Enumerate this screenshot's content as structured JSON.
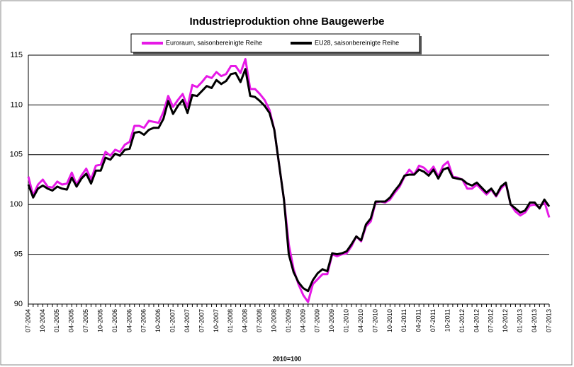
{
  "chart_data": {
    "type": "line",
    "title": "Industrieproduktion ohne Baugewerbe",
    "x_label": "2010=100",
    "categories": [
      "07-2004",
      null,
      null,
      "10-2004",
      null,
      null,
      "01-2005",
      null,
      null,
      "04-2005",
      null,
      null,
      "07-2005",
      null,
      null,
      "10-2005",
      null,
      null,
      "01-2006",
      null,
      null,
      "04-2006",
      null,
      null,
      "07-2006",
      null,
      null,
      "10-2006",
      null,
      null,
      "01-2007",
      null,
      null,
      "04-2007",
      null,
      null,
      "07-2007",
      null,
      null,
      "10-2007",
      null,
      null,
      "01-2008",
      null,
      null,
      "04-2008",
      null,
      null,
      "07-2008",
      null,
      null,
      "10-2008",
      null,
      null,
      "01-2009",
      null,
      null,
      "04-2009",
      null,
      null,
      "07-2009",
      null,
      null,
      "10-2009",
      null,
      null,
      "01-2010",
      null,
      null,
      "04-2010",
      null,
      null,
      "07-2010",
      null,
      null,
      "10-2010",
      null,
      null,
      "01-2011",
      null,
      null,
      "04-2011",
      null,
      null,
      "07-2011",
      null,
      null,
      "10-2011",
      null,
      null,
      "01-2012",
      null,
      null,
      "04-2012",
      null,
      null,
      "07-2012",
      null,
      null,
      "10-2012",
      null,
      null,
      "01-2013",
      null,
      null,
      "04-2013",
      null,
      null,
      "07-2013"
    ],
    "series": [
      {
        "name": "Euroraum, saisonbereinigte Reihe",
        "color": "#e619e6",
        "values": [
          102.8,
          100.9,
          102.0,
          102.5,
          101.8,
          101.7,
          102.3,
          102.0,
          102.1,
          103.2,
          102.0,
          102.9,
          103.6,
          102.5,
          103.9,
          104.0,
          105.3,
          104.9,
          105.5,
          105.3,
          106.0,
          106.3,
          107.9,
          107.9,
          107.7,
          108.4,
          108.3,
          108.2,
          109.3,
          110.9,
          109.8,
          110.5,
          111.1,
          109.8,
          112.0,
          111.8,
          112.3,
          112.9,
          112.7,
          113.3,
          112.9,
          113.1,
          113.9,
          113.9,
          113.2,
          114.6,
          111.6,
          111.6,
          111.1,
          110.5,
          109.5,
          107.5,
          104.0,
          100.5,
          96.0,
          93.5,
          92.0,
          90.9,
          90.2,
          92.0,
          92.5,
          93.0,
          93.0,
          95.0,
          94.8,
          95.0,
          95.1,
          95.8,
          96.8,
          96.3,
          97.8,
          98.3,
          100.2,
          100.3,
          100.2,
          100.5,
          101.2,
          101.8,
          102.8,
          103.5,
          103.0,
          103.9,
          103.7,
          103.2,
          103.8,
          102.8,
          103.9,
          104.3,
          102.8,
          102.7,
          102.5,
          101.6,
          101.6,
          102.0,
          101.5,
          101.0,
          101.5,
          100.8,
          101.6,
          102.1,
          100.0,
          99.3,
          98.9,
          99.2,
          99.9,
          100.0,
          99.7,
          100.3,
          98.7
        ]
      },
      {
        "name": "EU28, saisonbereinigte Reihe",
        "color": "#000000",
        "values": [
          102.0,
          100.7,
          101.6,
          101.9,
          101.6,
          101.4,
          101.8,
          101.6,
          101.5,
          102.7,
          101.8,
          102.6,
          103.1,
          102.1,
          103.4,
          103.4,
          104.7,
          104.5,
          105.1,
          104.9,
          105.5,
          105.6,
          107.2,
          107.3,
          107.0,
          107.5,
          107.7,
          107.7,
          108.6,
          110.4,
          109.1,
          109.9,
          110.5,
          109.2,
          111.0,
          110.9,
          111.4,
          111.9,
          111.7,
          112.5,
          112.1,
          112.4,
          113.1,
          113.2,
          112.3,
          113.6,
          110.9,
          110.8,
          110.4,
          109.9,
          109.2,
          107.5,
          104.0,
          100.5,
          95.0,
          93.2,
          92.2,
          91.6,
          91.3,
          92.4,
          93.1,
          93.5,
          93.3,
          95.1,
          95.0,
          95.1,
          95.3,
          96.0,
          96.8,
          96.4,
          98.0,
          98.6,
          100.3,
          100.3,
          100.3,
          100.7,
          101.4,
          102.0,
          102.9,
          103.0,
          103.0,
          103.5,
          103.3,
          102.9,
          103.5,
          102.6,
          103.5,
          103.7,
          102.7,
          102.6,
          102.5,
          102.1,
          101.9,
          102.2,
          101.7,
          101.2,
          101.6,
          100.9,
          101.8,
          102.2,
          100.0,
          99.6,
          99.2,
          99.4,
          100.2,
          100.2,
          99.6,
          100.5,
          99.8
        ]
      }
    ],
    "ylim": [
      90,
      115
    ],
    "yticks": [
      90,
      95,
      100,
      105,
      110,
      115
    ],
    "grid": true,
    "legend": "top"
  }
}
